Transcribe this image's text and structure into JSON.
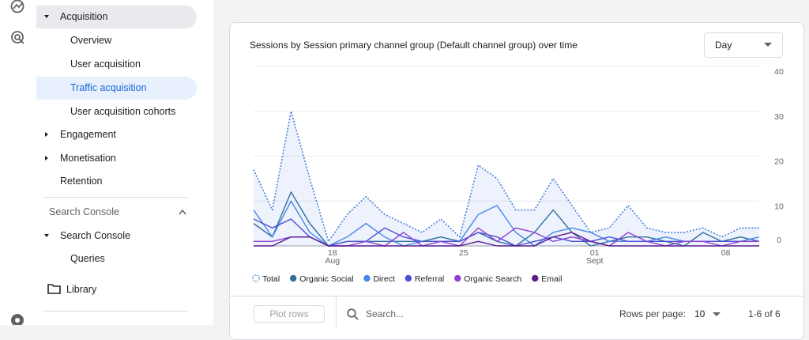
{
  "nav": {
    "items": [
      "Acquisition",
      "Overview",
      "User acquisition",
      "Traffic acquisition",
      "User acquisition cohorts",
      "Engagement",
      "Monetisation",
      "Retention"
    ],
    "section_header": "Search Console",
    "section_items": [
      "Search Console",
      "Queries"
    ],
    "library": "Library"
  },
  "chart_data": {
    "type": "line",
    "title": "Sessions by Session primary channel group (Default channel group) over time",
    "categories": [
      null,
      null,
      null,
      null,
      "18 Aug",
      null,
      null,
      null,
      null,
      null,
      null,
      "25",
      null,
      null,
      null,
      null,
      null,
      null,
      "01 Sept",
      null,
      null,
      null,
      null,
      null,
      null,
      "08",
      null,
      null
    ],
    "series": [
      {
        "name": "Total",
        "color": "#4a7fe0",
        "dashed": true,
        "fill": true,
        "values": [
          17,
          8,
          30,
          15,
          1,
          7,
          11,
          7,
          5,
          3,
          6,
          2,
          18,
          15,
          8,
          8,
          15,
          9,
          3,
          4,
          9,
          4,
          3,
          3,
          4,
          2,
          4,
          4
        ]
      },
      {
        "name": "Organic Social",
        "color": "#2f6f9f",
        "values": [
          5,
          2,
          12,
          5,
          0,
          1,
          1,
          1,
          1,
          1,
          2,
          1,
          3,
          1,
          0,
          3,
          8,
          3,
          0,
          1,
          2,
          2,
          1,
          0,
          3,
          1,
          2,
          1
        ]
      },
      {
        "name": "Direct",
        "color": "#4a86e8",
        "values": [
          8,
          2,
          10,
          3,
          0,
          2,
          5,
          2,
          0,
          1,
          1,
          1,
          7,
          9,
          3,
          0,
          3,
          4,
          3,
          1,
          1,
          1,
          2,
          1,
          1,
          1,
          1,
          2
        ]
      },
      {
        "name": "Referral",
        "color": "#4c4ed8",
        "values": [
          6,
          4,
          6,
          2,
          0,
          1,
          1,
          4,
          2,
          1,
          1,
          1,
          3,
          2,
          0,
          1,
          2,
          1,
          1,
          2,
          1,
          1,
          1,
          1,
          1,
          1,
          1,
          1
        ]
      },
      {
        "name": "Organic Search",
        "color": "#8f3fd6",
        "values": [
          1,
          1,
          2,
          2,
          0,
          0,
          1,
          0,
          3,
          0,
          1,
          0,
          4,
          1,
          4,
          3,
          1,
          2,
          1,
          0,
          3,
          1,
          0,
          1,
          1,
          0,
          1,
          1
        ]
      },
      {
        "name": "Email",
        "color": "#5a1c8c",
        "values": [
          0,
          0,
          2,
          2,
          0,
          0,
          0,
          0,
          0,
          0,
          0,
          0,
          1,
          0,
          0,
          0,
          2,
          3,
          1,
          0,
          0,
          0,
          0,
          0,
          0,
          0,
          0,
          0
        ]
      }
    ],
    "ylim": [
      0,
      40
    ],
    "yticks": [
      0,
      10,
      20,
      30,
      40
    ],
    "grid": true
  },
  "controls": {
    "granularity": "Day",
    "plot_rows": "Plot rows",
    "search_placeholder": "Search...",
    "rows_per_page_label": "Rows per page:",
    "rows_per_page": "10",
    "pagination": "1-6 of 6"
  }
}
